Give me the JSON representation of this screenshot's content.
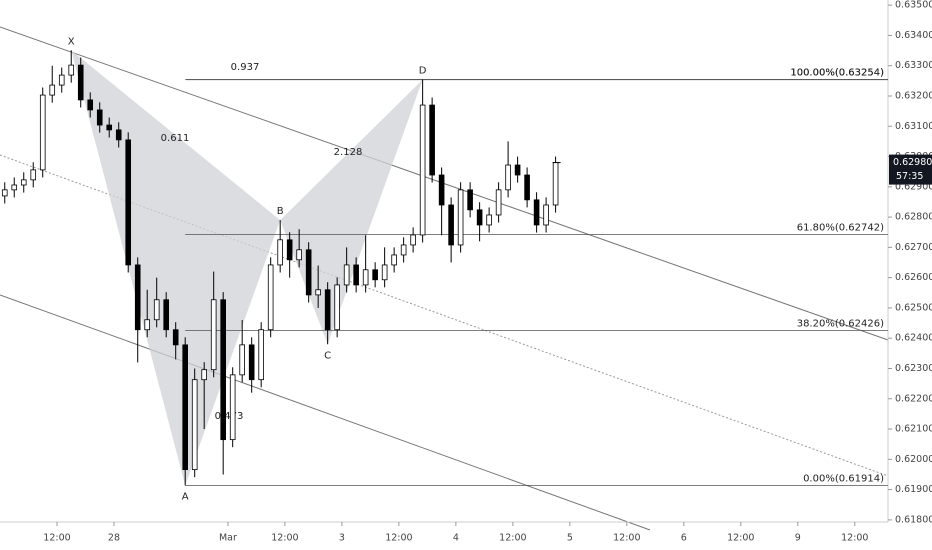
{
  "chart_data": {
    "type": "candlestick",
    "x": [
      0,
      2,
      4,
      6,
      8,
      10,
      12,
      14,
      16,
      18,
      20,
      22,
      24,
      26,
      28,
      30,
      32,
      34,
      36,
      38,
      40,
      42,
      44,
      46,
      48,
      50,
      52,
      54,
      56,
      58,
      60,
      62,
      64,
      66,
      68,
      70,
      72,
      74,
      76,
      78,
      80,
      82,
      84,
      86,
      88,
      90,
      92,
      94,
      96,
      98,
      100,
      102,
      104,
      106,
      108,
      110,
      112,
      114,
      116
    ],
    "open": [
      0.6287,
      0.6289,
      0.62906,
      0.62923,
      0.62956,
      0.63203,
      0.63236,
      0.63269,
      0.63302,
      0.63187,
      0.63154,
      0.63104,
      0.63088,
      0.63055,
      0.62642,
      0.62428,
      0.62461,
      0.62527,
      0.62428,
      0.62378,
      0.61966,
      0.62263,
      0.62296,
      0.62527,
      0.62065,
      0.62279,
      0.62378,
      0.62263,
      0.62428,
      0.62642,
      0.62725,
      0.62659,
      0.62692,
      0.62543,
      0.6256,
      0.62428,
      0.62576,
      0.62642,
      0.62576,
      0.62626,
      0.62593,
      0.62642,
      0.62675,
      0.62708,
      0.62741,
      0.6317,
      0.62939,
      0.6284,
      0.62708,
      0.6289,
      0.62824,
      0.62774,
      0.62807,
      0.6289,
      0.62972,
      0.62939,
      0.62857,
      0.62774,
      0.6284
    ],
    "high": [
      0.62915,
      0.62931,
      0.62948,
      0.62981,
      0.63228,
      0.633,
      0.63294,
      0.63351,
      0.63327,
      0.63212,
      0.63179,
      0.63129,
      0.63113,
      0.6308,
      0.62667,
      0.6256,
      0.626,
      0.62552,
      0.62453,
      0.62403,
      0.623,
      0.62321,
      0.6262,
      0.62552,
      0.62304,
      0.6246,
      0.62403,
      0.62453,
      0.62667,
      0.6279,
      0.6275,
      0.6276,
      0.62717,
      0.6264,
      0.62585,
      0.62601,
      0.627,
      0.62667,
      0.6274,
      0.62651,
      0.627,
      0.627,
      0.62733,
      0.62766,
      0.63254,
      0.63195,
      0.62964,
      0.62865,
      0.62915,
      0.62915,
      0.62849,
      0.62832,
      0.62915,
      0.6305,
      0.63,
      0.62964,
      0.62882,
      0.62865,
      0.63
    ],
    "low": [
      0.62845,
      0.62865,
      0.62881,
      0.62898,
      0.62931,
      0.63178,
      0.63211,
      0.63244,
      0.63162,
      0.63129,
      0.63079,
      0.63063,
      0.6303,
      0.62617,
      0.6232,
      0.62403,
      0.62436,
      0.62403,
      0.6233,
      0.61914,
      0.61941,
      0.621,
      0.62271,
      0.6195,
      0.6204,
      0.62254,
      0.6222,
      0.62238,
      0.62403,
      0.62617,
      0.626,
      0.62634,
      0.62518,
      0.625,
      0.6238,
      0.62403,
      0.62551,
      0.62551,
      0.62551,
      0.62568,
      0.62568,
      0.62617,
      0.6265,
      0.62683,
      0.62716,
      0.62914,
      0.6274,
      0.6265,
      0.62683,
      0.62799,
      0.6272,
      0.62749,
      0.62782,
      0.62865,
      0.62914,
      0.62832,
      0.62749,
      0.62749,
      0.62815
    ],
    "close": [
      0.6289,
      0.62906,
      0.62923,
      0.62956,
      0.63203,
      0.63236,
      0.63269,
      0.63302,
      0.63187,
      0.63154,
      0.63104,
      0.63088,
      0.63055,
      0.62642,
      0.62428,
      0.62461,
      0.62527,
      0.62428,
      0.62378,
      0.61966,
      0.62263,
      0.62296,
      0.62527,
      0.62065,
      0.62279,
      0.62378,
      0.62263,
      0.62428,
      0.62642,
      0.62725,
      0.62659,
      0.62692,
      0.62543,
      0.6256,
      0.62428,
      0.62576,
      0.62642,
      0.62576,
      0.62626,
      0.62593,
      0.62642,
      0.62675,
      0.62708,
      0.62741,
      0.6317,
      0.62939,
      0.6284,
      0.62708,
      0.6289,
      0.62824,
      0.62774,
      0.62807,
      0.6289,
      0.62972,
      0.62939,
      0.62857,
      0.62774,
      0.6284,
      0.6298
    ],
    "up_color": "#ffffff",
    "down_color": "#000000",
    "wick_color": "#000000",
    "xlim": [
      -1,
      186
    ],
    "xticks": [
      {
        "value": 11,
        "label": "12:00"
      },
      {
        "value": 23,
        "label": "28"
      },
      {
        "value": 47,
        "label": "Mar"
      },
      {
        "value": 59,
        "label": "12:00"
      },
      {
        "value": 71,
        "label": "3"
      },
      {
        "value": 83,
        "label": "12:00"
      },
      {
        "value": 95,
        "label": "4"
      },
      {
        "value": 107,
        "label": "12:00"
      },
      {
        "value": 119,
        "label": "5"
      },
      {
        "value": 131,
        "label": "12:00"
      },
      {
        "value": 143,
        "label": "6"
      },
      {
        "value": 155,
        "label": "12:00"
      },
      {
        "value": 167,
        "label": "9"
      },
      {
        "value": 179,
        "label": "12:00"
      }
    ],
    "ylim": [
      0.61793,
      0.63517
    ],
    "yticks": [
      {
        "value": 0.618,
        "label": "0.61800"
      },
      {
        "value": 0.619,
        "label": "0.61900"
      },
      {
        "value": 0.62,
        "label": "0.62000"
      },
      {
        "value": 0.621,
        "label": "0.62100"
      },
      {
        "value": 0.622,
        "label": "0.62200"
      },
      {
        "value": 0.623,
        "label": "0.62300"
      },
      {
        "value": 0.624,
        "label": "0.62400"
      },
      {
        "value": 0.625,
        "label": "0.62500"
      },
      {
        "value": 0.626,
        "label": "0.62600"
      },
      {
        "value": 0.627,
        "label": "0.62700"
      },
      {
        "value": 0.628,
        "label": "0.62800"
      },
      {
        "value": 0.629,
        "label": "0.62900"
      },
      {
        "value": 0.63,
        "label": "0.63000"
      },
      {
        "value": 0.631,
        "label": "0.63100"
      },
      {
        "value": 0.632,
        "label": "0.63200"
      },
      {
        "value": 0.633,
        "label": "0.63300"
      },
      {
        "value": 0.634,
        "label": "0.63400"
      },
      {
        "value": 0.635,
        "label": "0.63500"
      }
    ],
    "grid": false,
    "fib_levels": [
      {
        "value": 0.63254,
        "label": "100.00%(0.63254)"
      },
      {
        "value": 0.63254,
        "label": "100.00%(0.63254)"
      },
      {
        "value": 0.62742,
        "label": "61.80%(0.62742)"
      },
      {
        "value": 0.62426,
        "label": "38.20%(0.62426)"
      },
      {
        "value": 0.61914,
        "label": "0.00%(0.61914)"
      }
    ],
    "fib_start": 38,
    "pattern_points": [
      {
        "label": "X",
        "x": 14,
        "value": 0.63351
      },
      {
        "label": "A",
        "x": 38,
        "value": 0.61914
      },
      {
        "label": "B",
        "x": 58,
        "value": 0.6279
      },
      {
        "label": "C",
        "x": 68,
        "value": 0.6238
      },
      {
        "label": "D",
        "x": 88,
        "value": 0.63254
      }
    ],
    "ratios": [
      0.937,
      0.611,
      2.128,
      0.473
    ],
    "last_price": {
      "value": 0.6298,
      "label": "0.62980"
    },
    "countdown": "57:35"
  }
}
